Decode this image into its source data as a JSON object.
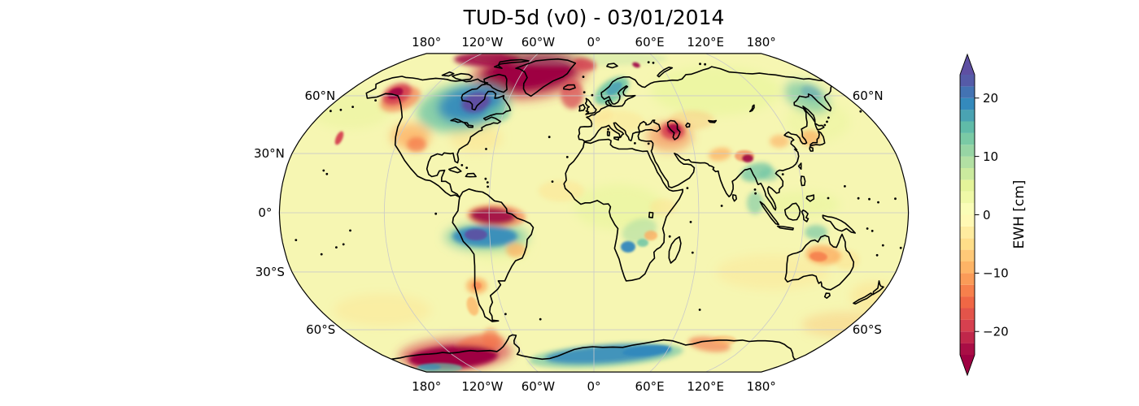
{
  "chart_data": {
    "type": "heatmap",
    "subtype": "global-geophysical-field",
    "projection": "Robinson",
    "title": "TUD-5d (v0) - 03/01/2014",
    "field": "Equivalent Water Height anomaly",
    "date_shown": "03/01/2014",
    "colorbar": {
      "label": "EWH [cm]",
      "ticks": [
        20,
        10,
        0,
        -10,
        -20
      ],
      "vmin": -24,
      "vmax": 24,
      "n_bands": 24,
      "extend": "both",
      "colormap": "Spectral_r",
      "colormap_stops": [
        "#9e0142",
        "#d53e4f",
        "#f46d43",
        "#fdae61",
        "#fee08b",
        "#ffffbf",
        "#e6f598",
        "#abdda4",
        "#66c2a5",
        "#3288bd",
        "#5e4fa2"
      ]
    },
    "x_tick_labels": [
      {
        "lon": -180,
        "text": "180°"
      },
      {
        "lon": -120,
        "text": "120°W"
      },
      {
        "lon": -60,
        "text": "60°W"
      },
      {
        "lon": 0,
        "text": "0°"
      },
      {
        "lon": 60,
        "text": "60°E"
      },
      {
        "lon": 120,
        "text": "120°E"
      },
      {
        "lon": 180,
        "text": "180°"
      }
    ],
    "y_tick_labels_left": [
      {
        "lat": 60,
        "text": "60°N"
      },
      {
        "lat": 30,
        "text": "30°N"
      },
      {
        "lat": 0,
        "text": "0°"
      },
      {
        "lat": -30,
        "text": "30°S"
      },
      {
        "lat": -60,
        "text": "60°S"
      }
    ],
    "y_tick_labels_right": [
      {
        "lat": 60,
        "text": "60°N"
      },
      {
        "lat": -60,
        "text": "60°S"
      }
    ],
    "grid": {
      "meridians_deg": [
        -120,
        -60,
        0,
        60,
        120
      ],
      "parallels_deg": [
        -60,
        -30,
        0,
        30,
        60
      ],
      "color": "#c9c9c9"
    },
    "base_field_color": "#f6f6b2",
    "anomalies": [
      {
        "region": "Greenland",
        "ewh_cm": -24
      },
      {
        "region": "Baffin Bay / Canadian Arctic",
        "ewh_cm": -20
      },
      {
        "region": "Gulf of Alaska coast",
        "ewh_cm": -20
      },
      {
        "region": "Hudson Bay / central Canada",
        "ewh_cm": 22
      },
      {
        "region": "Western United States",
        "ewh_cm": -8
      },
      {
        "region": "Northern Amazon",
        "ewh_cm": -20
      },
      {
        "region": "Southern Amazon basin",
        "ewh_cm": 21
      },
      {
        "region": "Eastern Brazil",
        "ewh_cm": -7
      },
      {
        "region": "Central Argentina",
        "ewh_cm": -8
      },
      {
        "region": "Zambezi / Okavango",
        "ewh_cm": 18
      },
      {
        "region": "East Africa (orange spot)",
        "ewh_cm": -7
      },
      {
        "region": "Scandinavia",
        "ewh_cm": 12
      },
      {
        "region": "Svalbard / Fram Strait",
        "ewh_cm": -16
      },
      {
        "region": "Caspian Sea region",
        "ewh_cm": -20
      },
      {
        "region": "Himalaya (Bhutan/Assam)",
        "ewh_cm": -16
      },
      {
        "region": "Northwest India",
        "ewh_cm": -8
      },
      {
        "region": "India / Southeast Asia",
        "ewh_cm": 10
      },
      {
        "region": "Northeast Asia / Okhotsk",
        "ewh_cm": 10
      },
      {
        "region": "Korea / Yellow Sea",
        "ewh_cm": -7
      },
      {
        "region": "Central Australia",
        "ewh_cm": -10
      },
      {
        "region": "Northern Australia",
        "ewh_cm": 8
      },
      {
        "region": "West Antarctica (Amundsen Sea)",
        "ewh_cm": -24
      },
      {
        "region": "Antarctic Peninsula",
        "ewh_cm": -10
      },
      {
        "region": "East Antarctic coast (Dronning Maud - Enderby)",
        "ewh_cm": 16
      },
      {
        "region": "Wilkes Land coast (Antarctica)",
        "ewh_cm": -10
      }
    ]
  }
}
